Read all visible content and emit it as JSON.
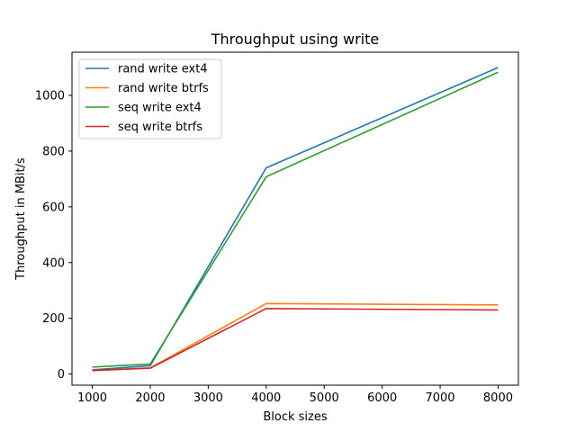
{
  "chart_data": {
    "type": "line",
    "title": "Throughput using write",
    "xlabel": "Block sizes",
    "ylabel": "Throughput in MBit/s",
    "x": [
      1000,
      2000,
      4000,
      8000
    ],
    "xlim": [
      650,
      8350
    ],
    "ylim": [
      -40,
      1155
    ],
    "xticks": [
      1000,
      2000,
      3000,
      4000,
      5000,
      6000,
      7000,
      8000
    ],
    "yticks": [
      0,
      200,
      400,
      600,
      800,
      1000
    ],
    "legend_position": "upper left",
    "grid": false,
    "series": [
      {
        "name": "rand write ext4",
        "color": "#1f77b4",
        "values": [
          15,
          30,
          740,
          1100
        ]
      },
      {
        "name": "rand write btrfs",
        "color": "#ff7f0e",
        "values": [
          12,
          22,
          253,
          248
        ]
      },
      {
        "name": "seq write ext4",
        "color": "#2ca02c",
        "values": [
          25,
          36,
          708,
          1083
        ]
      },
      {
        "name": "seq write btrfs",
        "color": "#d62728",
        "values": [
          13,
          21,
          235,
          230
        ]
      }
    ]
  }
}
